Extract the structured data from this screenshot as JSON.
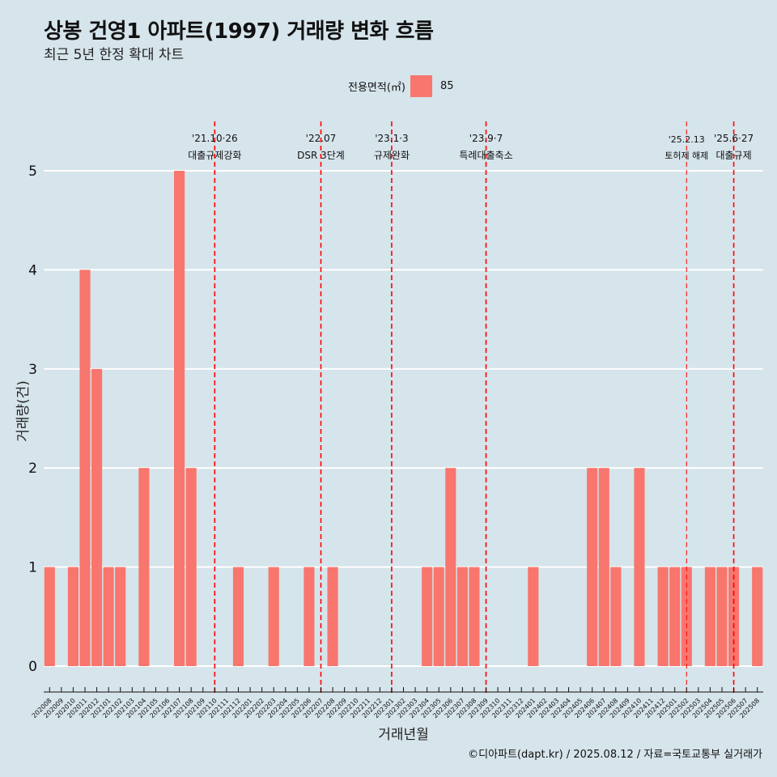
{
  "title": "상봉 건영1 아파트(1997) 거래량 변화 흐름",
  "subtitle": "최근 5년 한정 확대 차트",
  "legend": {
    "title": "전용면적(㎡)",
    "label": "85",
    "color": "#f8766d"
  },
  "credit": "©디아파트(dapt.kr) / 2025.08.12 / 자료=국토교통부 실거래가",
  "chart_data": {
    "type": "bar",
    "xlabel": "거래년월",
    "ylabel": "거래량(건)",
    "ylim": [
      0,
      5
    ],
    "yticks": [
      0,
      1,
      2,
      3,
      4,
      5
    ],
    "grid": true,
    "legend_position": "top",
    "categories": [
      "202008",
      "202009",
      "202010",
      "202011",
      "202012",
      "202101",
      "202102",
      "202103",
      "202104",
      "202105",
      "202106",
      "202107",
      "202108",
      "202109",
      "202110",
      "202111",
      "202112",
      "202201",
      "202202",
      "202203",
      "202204",
      "202205",
      "202206",
      "202207",
      "202208",
      "202209",
      "202210",
      "202211",
      "202212",
      "202301",
      "202302",
      "202303",
      "202304",
      "202305",
      "202306",
      "202307",
      "202308",
      "202309",
      "202310",
      "202311",
      "202312",
      "202401",
      "202402",
      "202403",
      "202404",
      "202405",
      "202406",
      "202407",
      "202408",
      "202409",
      "202410",
      "202411",
      "202412",
      "202501",
      "202502",
      "202503",
      "202504",
      "202505",
      "202506",
      "202507",
      "202508"
    ],
    "series": [
      {
        "name": "85",
        "color": "#f8766d",
        "values": [
          1,
          0,
          1,
          4,
          3,
          1,
          1,
          0,
          2,
          0,
          0,
          5,
          2,
          0,
          0,
          0,
          1,
          0,
          0,
          1,
          0,
          0,
          1,
          0,
          1,
          0,
          0,
          0,
          0,
          0,
          0,
          0,
          1,
          1,
          2,
          1,
          1,
          0,
          0,
          0,
          0,
          1,
          0,
          0,
          0,
          0,
          2,
          2,
          1,
          0,
          2,
          0,
          1,
          1,
          1,
          0,
          1,
          1,
          1,
          0,
          1
        ]
      }
    ],
    "annotations": [
      {
        "at": 14.5,
        "line1": "'21.10·26",
        "line2": "대출규제강화",
        "small": false
      },
      {
        "at": 23.5,
        "line1": "'22.07",
        "line2": "DSR 3단계",
        "small": false
      },
      {
        "at": 29.5,
        "line1": "'23.1·3",
        "line2": "규제완화",
        "small": false
      },
      {
        "at": 37.5,
        "line1": "'23.9·7",
        "line2": "특례대출축소",
        "small": false
      },
      {
        "at": 54.5,
        "line1": "'25.2.13",
        "line2": "토허제 해제",
        "small": true
      },
      {
        "at": 58.5,
        "line1": "'25.6·27",
        "line2": "대출규제",
        "small": false
      }
    ]
  }
}
